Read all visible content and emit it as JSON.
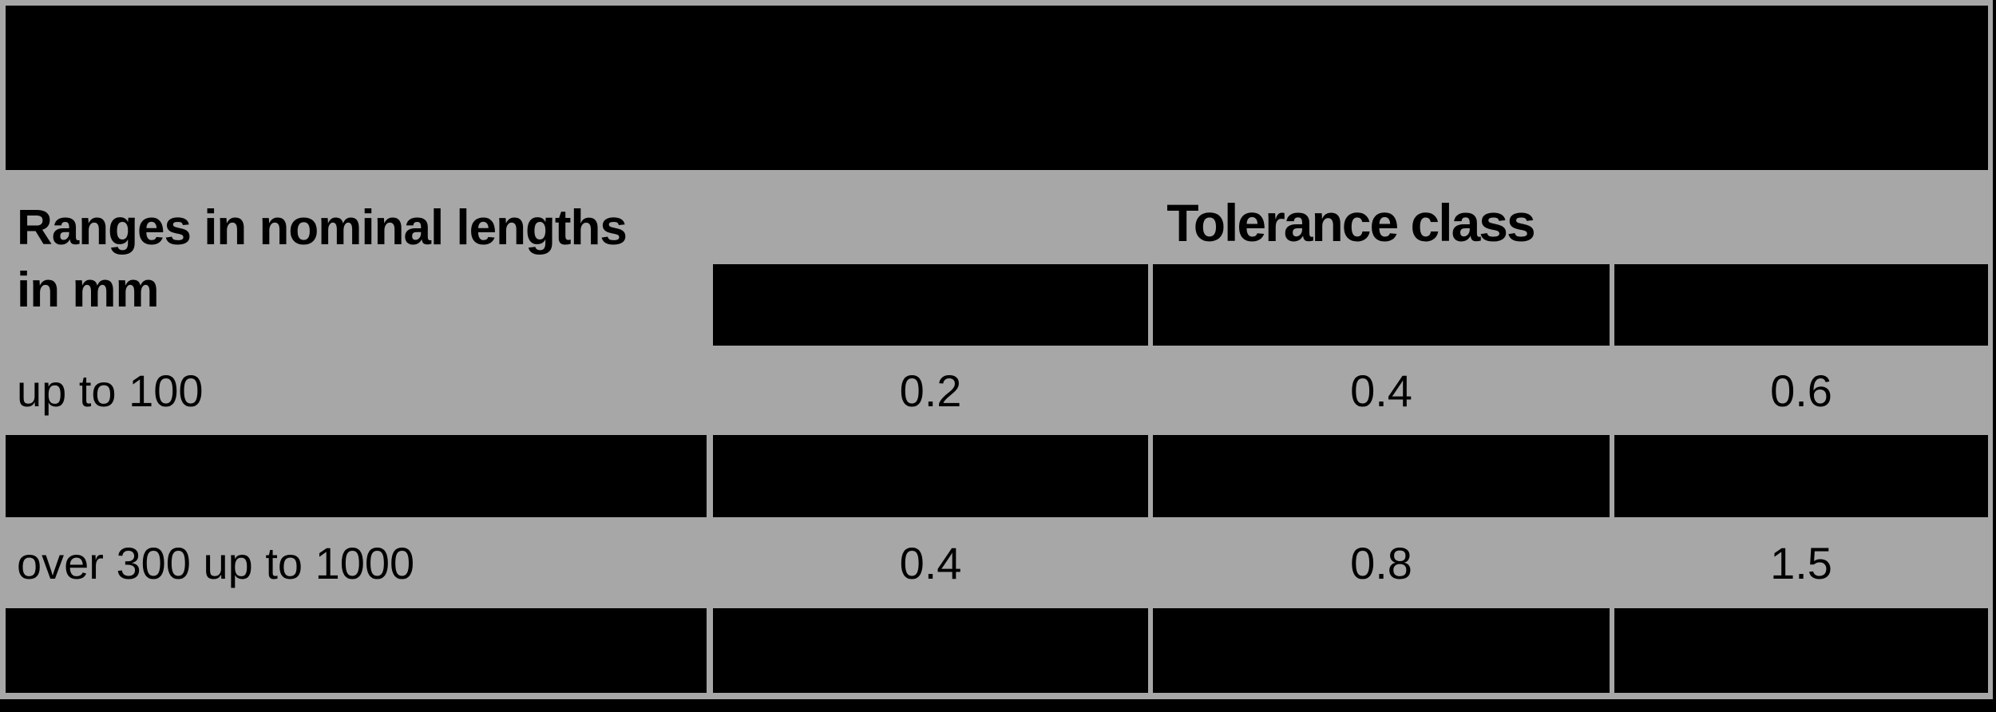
{
  "page": {
    "background": "#a7a7a7",
    "redaction": "#000000"
  },
  "table": {
    "row_header": {
      "line1": "Ranges in nominal lengths",
      "line2": "in mm"
    },
    "group_header": "Tolerance class",
    "data_rows": [
      {
        "label": "up to 100",
        "values": [
          "0.2",
          "0.4",
          "0.6"
        ]
      },
      {
        "label": "over 300 up to 1000",
        "values": [
          "0.4",
          "0.8",
          "1.5"
        ]
      }
    ]
  }
}
